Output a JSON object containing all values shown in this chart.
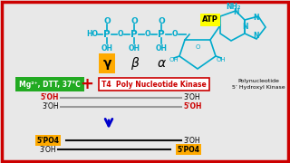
{
  "bg_color": "#e8e8e8",
  "border_color": "#cc0000",
  "atp_color": "#00aacc",
  "atp_label_bg": "#ffff00",
  "gamma_bg": "#ffaa00",
  "green_box_bg": "#22aa22",
  "green_box_text": "Mg²⁺, DTT, 37°C",
  "green_box_text_color": "#ffffff",
  "plus_color": "#cc0000",
  "kinase_text": "T4  Poly Nucleotide Kinase",
  "kinase_border": "#cc0000",
  "kinase_text_color": "#cc0000",
  "poly_text": "Polynucleotide\n5’ Hydroxyl Kinase",
  "strand_gray": "#999999",
  "strand_black": "#111111",
  "red_label": "#cc0000",
  "arrow_color": "#0000cc",
  "gold_bg": "#ffaa00"
}
